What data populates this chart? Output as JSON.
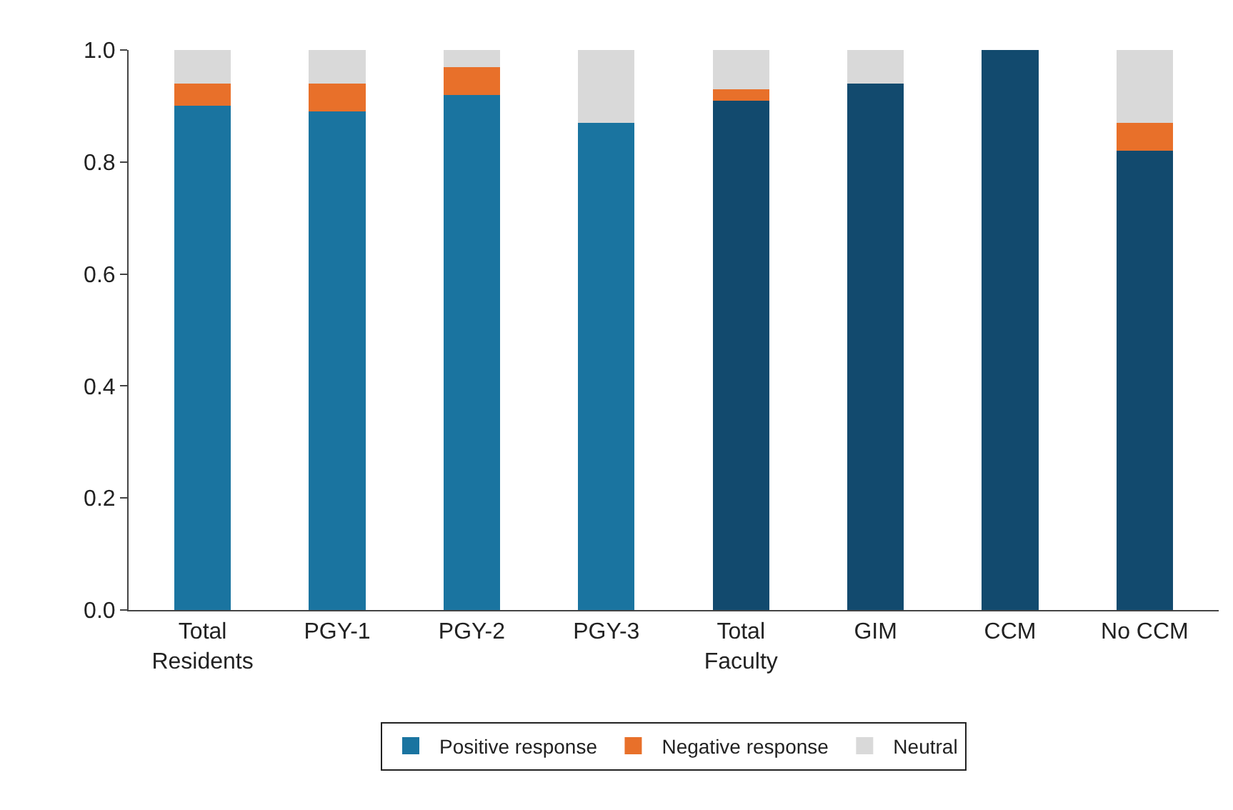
{
  "chart_data": {
    "type": "bar",
    "stacked": true,
    "categories": [
      "Total Residents",
      "PGY-1",
      "PGY-2",
      "PGY-3",
      "Total Faculty",
      "GIM",
      "CCM",
      "No CCM"
    ],
    "series": [
      {
        "name": "Positive response",
        "color": "#1a74a0",
        "colors": [
          "#1a74a0",
          "#1a74a0",
          "#1a74a0",
          "#1a74a0",
          "#124a6e",
          "#124a6e",
          "#124a6e",
          "#124a6e"
        ],
        "values": [
          0.9,
          0.89,
          0.92,
          0.87,
          0.91,
          0.94,
          1.0,
          0.82
        ]
      },
      {
        "name": "Negative response",
        "color": "#e8702a",
        "values": [
          0.04,
          0.05,
          0.05,
          0,
          0.02,
          0,
          0,
          0.05
        ]
      },
      {
        "name": "Neutral",
        "color": "#d9d9d9",
        "values": [
          0.06,
          0.06,
          0.03,
          0.13,
          0.07,
          0.06,
          0,
          0.13
        ]
      }
    ],
    "ylim": [
      0,
      1.0
    ],
    "yticks": [
      {
        "value": 0,
        "label": "0.0"
      },
      {
        "value": 0.2,
        "label": "0.2"
      },
      {
        "value": 0.4,
        "label": "0.4"
      },
      {
        "value": 0.6,
        "label": "0.6"
      },
      {
        "value": 0.8,
        "label": "0.8"
      },
      {
        "value": 1.0,
        "label": "1.0"
      }
    ],
    "legend": "bottom"
  }
}
